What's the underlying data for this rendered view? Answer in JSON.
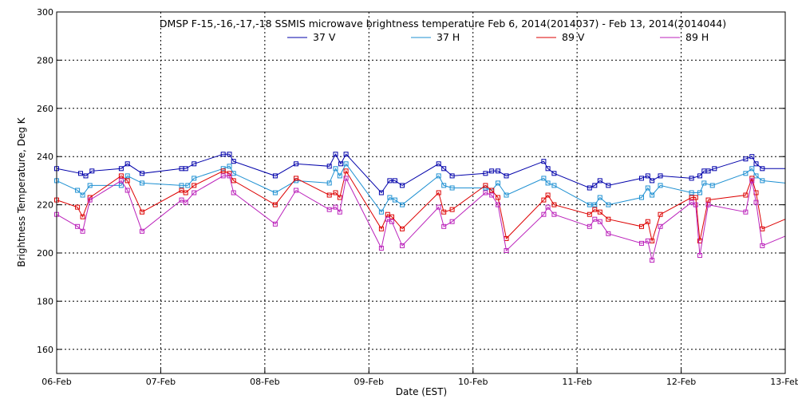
{
  "chart_data": {
    "type": "line",
    "title": "DMSP F-15,-16,-17,-18 SSMIS microwave brightness temperature Feb  6, 2014(2014037) - Feb 13, 2014(2014044)",
    "xlabel": "Date (EST)",
    "ylabel": "Brightness Temperature, Deg K",
    "xlim": [
      0,
      7
    ],
    "ylim": [
      150,
      300
    ],
    "x_ticks": [
      {
        "value": 0,
        "label": "06-Feb"
      },
      {
        "value": 1,
        "label": "07-Feb"
      },
      {
        "value": 2,
        "label": "08-Feb"
      },
      {
        "value": 3,
        "label": "09-Feb"
      },
      {
        "value": 4,
        "label": "10-Feb"
      },
      {
        "value": 5,
        "label": "11-Feb"
      },
      {
        "value": 6,
        "label": "12-Feb"
      },
      {
        "value": 7,
        "label": "13-Feb"
      }
    ],
    "y_ticks": [
      {
        "value": 160,
        "label": "160"
      },
      {
        "value": 180,
        "label": "180"
      },
      {
        "value": 200,
        "label": "200"
      },
      {
        "value": 220,
        "label": "220"
      },
      {
        "value": 240,
        "label": "240"
      },
      {
        "value": 260,
        "label": "260"
      },
      {
        "value": 280,
        "label": "280"
      },
      {
        "value": 300,
        "label": "300"
      }
    ],
    "grid": true,
    "legend_position": "top-center",
    "series": [
      {
        "name": "37 V",
        "color": "#0000aa",
        "points": [
          [
            0,
            235
          ],
          [
            0.23,
            233
          ],
          [
            0.28,
            232
          ],
          [
            0.34,
            234
          ],
          [
            0.62,
            235
          ],
          [
            0.68,
            237
          ],
          [
            0.82,
            233
          ],
          [
            1.2,
            235
          ],
          [
            1.24,
            235
          ],
          [
            1.32,
            237
          ],
          [
            1.6,
            241
          ],
          [
            1.66,
            241
          ],
          [
            1.7,
            238
          ],
          [
            2.1,
            232
          ],
          [
            2.3,
            237
          ],
          [
            2.62,
            236
          ],
          [
            2.68,
            241
          ],
          [
            2.73,
            237
          ],
          [
            2.78,
            241
          ],
          [
            3.12,
            225
          ],
          [
            3.2,
            230
          ],
          [
            3.25,
            230
          ],
          [
            3.32,
            228
          ],
          [
            3.67,
            237
          ],
          [
            3.72,
            235
          ],
          [
            3.8,
            232
          ],
          [
            4.12,
            233
          ],
          [
            4.18,
            234
          ],
          [
            4.24,
            234
          ],
          [
            4.32,
            232
          ],
          [
            4.68,
            238
          ],
          [
            4.72,
            235
          ],
          [
            4.78,
            233
          ],
          [
            5.12,
            227
          ],
          [
            5.17,
            228
          ],
          [
            5.22,
            230
          ],
          [
            5.3,
            228
          ],
          [
            5.62,
            231
          ],
          [
            5.68,
            232
          ],
          [
            5.72,
            230
          ],
          [
            5.8,
            232
          ],
          [
            6.1,
            231
          ],
          [
            6.18,
            232
          ],
          [
            6.22,
            234
          ],
          [
            6.26,
            234
          ],
          [
            6.32,
            235
          ],
          [
            6.62,
            239
          ],
          [
            6.68,
            240
          ],
          [
            6.72,
            237
          ],
          [
            6.78,
            235
          ],
          [
            7,
            235
          ]
        ]
      },
      {
        "name": "37 H",
        "color": "#1e90d2",
        "points": [
          [
            0,
            230
          ],
          [
            0.2,
            226
          ],
          [
            0.25,
            224
          ],
          [
            0.32,
            228
          ],
          [
            0.62,
            228
          ],
          [
            0.68,
            232
          ],
          [
            0.82,
            229
          ],
          [
            1.2,
            228
          ],
          [
            1.26,
            228
          ],
          [
            1.32,
            231
          ],
          [
            1.6,
            235
          ],
          [
            1.66,
            236
          ],
          [
            1.7,
            233
          ],
          [
            2.1,
            225
          ],
          [
            2.3,
            230
          ],
          [
            2.62,
            229
          ],
          [
            2.68,
            235
          ],
          [
            2.72,
            232
          ],
          [
            2.78,
            237
          ],
          [
            3.12,
            217
          ],
          [
            3.2,
            223
          ],
          [
            3.25,
            222
          ],
          [
            3.32,
            220
          ],
          [
            3.67,
            232
          ],
          [
            3.72,
            228
          ],
          [
            3.8,
            227
          ],
          [
            4.12,
            227
          ],
          [
            4.18,
            226
          ],
          [
            4.24,
            229
          ],
          [
            4.32,
            224
          ],
          [
            4.68,
            231
          ],
          [
            4.72,
            229
          ],
          [
            4.78,
            228
          ],
          [
            5.12,
            220
          ],
          [
            5.17,
            220
          ],
          [
            5.22,
            223
          ],
          [
            5.3,
            220
          ],
          [
            5.62,
            223
          ],
          [
            5.68,
            227
          ],
          [
            5.72,
            224
          ],
          [
            5.8,
            228
          ],
          [
            6.1,
            225
          ],
          [
            6.18,
            225
          ],
          [
            6.22,
            229
          ],
          [
            6.3,
            228
          ],
          [
            6.62,
            233
          ],
          [
            6.68,
            235
          ],
          [
            6.72,
            232
          ],
          [
            6.78,
            230
          ],
          [
            7,
            229
          ]
        ]
      },
      {
        "name": "89 V",
        "color": "#dd0000",
        "points": [
          [
            0,
            222
          ],
          [
            0.2,
            219
          ],
          [
            0.25,
            215
          ],
          [
            0.32,
            223
          ],
          [
            0.62,
            232
          ],
          [
            0.68,
            230
          ],
          [
            0.82,
            217
          ],
          [
            1.2,
            226
          ],
          [
            1.24,
            225
          ],
          [
            1.32,
            228
          ],
          [
            1.6,
            234
          ],
          [
            1.66,
            233
          ],
          [
            1.7,
            230
          ],
          [
            2.1,
            220
          ],
          [
            2.3,
            231
          ],
          [
            2.62,
            224
          ],
          [
            2.68,
            225
          ],
          [
            2.72,
            223
          ],
          [
            2.78,
            234
          ],
          [
            3.12,
            210
          ],
          [
            3.18,
            216
          ],
          [
            3.22,
            215
          ],
          [
            3.32,
            210
          ],
          [
            3.67,
            225
          ],
          [
            3.72,
            217
          ],
          [
            3.8,
            218
          ],
          [
            4.12,
            228
          ],
          [
            4.18,
            226
          ],
          [
            4.24,
            223
          ],
          [
            4.32,
            206
          ],
          [
            4.68,
            222
          ],
          [
            4.72,
            224
          ],
          [
            4.78,
            220
          ],
          [
            5.12,
            216
          ],
          [
            5.17,
            218
          ],
          [
            5.22,
            217
          ],
          [
            5.3,
            214
          ],
          [
            5.62,
            211
          ],
          [
            5.68,
            213
          ],
          [
            5.72,
            205
          ],
          [
            5.8,
            216
          ],
          [
            6.1,
            223
          ],
          [
            6.14,
            223
          ],
          [
            6.18,
            205
          ],
          [
            6.26,
            222
          ],
          [
            6.62,
            224
          ],
          [
            6.68,
            231
          ],
          [
            6.72,
            225
          ],
          [
            6.78,
            210
          ],
          [
            7,
            214
          ]
        ]
      },
      {
        "name": "89 H",
        "color": "#bb22bb",
        "points": [
          [
            0,
            216
          ],
          [
            0.2,
            211
          ],
          [
            0.25,
            209
          ],
          [
            0.32,
            222
          ],
          [
            0.62,
            230
          ],
          [
            0.68,
            226
          ],
          [
            0.82,
            209
          ],
          [
            1.2,
            222
          ],
          [
            1.24,
            221
          ],
          [
            1.32,
            225
          ],
          [
            1.6,
            232
          ],
          [
            1.66,
            232
          ],
          [
            1.7,
            225
          ],
          [
            2.1,
            212
          ],
          [
            2.3,
            226
          ],
          [
            2.62,
            218
          ],
          [
            2.68,
            219
          ],
          [
            2.72,
            217
          ],
          [
            2.78,
            231
          ],
          [
            3.12,
            202
          ],
          [
            3.18,
            214
          ],
          [
            3.22,
            213
          ],
          [
            3.32,
            203
          ],
          [
            3.67,
            219
          ],
          [
            3.72,
            211
          ],
          [
            3.8,
            213
          ],
          [
            4.12,
            225
          ],
          [
            4.18,
            224
          ],
          [
            4.24,
            220
          ],
          [
            4.32,
            201
          ],
          [
            4.68,
            216
          ],
          [
            4.72,
            219
          ],
          [
            4.78,
            216
          ],
          [
            5.12,
            211
          ],
          [
            5.17,
            214
          ],
          [
            5.22,
            213
          ],
          [
            5.3,
            208
          ],
          [
            5.62,
            204
          ],
          [
            5.68,
            205
          ],
          [
            5.72,
            197
          ],
          [
            5.8,
            211
          ],
          [
            6.1,
            221
          ],
          [
            6.14,
            220
          ],
          [
            6.18,
            199
          ],
          [
            6.26,
            220
          ],
          [
            6.62,
            217
          ],
          [
            6.68,
            230
          ],
          [
            6.72,
            221
          ],
          [
            6.78,
            203
          ],
          [
            7,
            207
          ]
        ]
      }
    ]
  }
}
